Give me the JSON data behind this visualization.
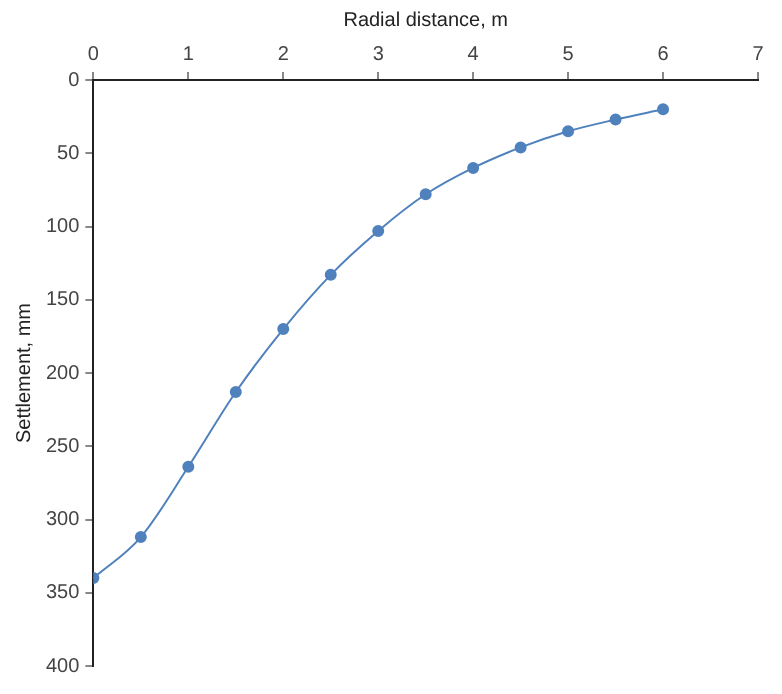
{
  "chart_data": {
    "type": "line",
    "xlabel": "Radial distance, m",
    "ylabel": "Settlement, mm",
    "x": [
      0,
      0.5,
      1,
      1.5,
      2,
      2.5,
      3,
      3.5,
      4,
      4.5,
      5,
      5.5,
      6
    ],
    "series": [
      {
        "color": "#4f81bd",
        "values": [
          340,
          312,
          264,
          213,
          170,
          133,
          103,
          78,
          60,
          46,
          35,
          27,
          20
        ]
      }
    ],
    "xlim": [
      0,
      7
    ],
    "xticks": [
      0,
      1,
      2,
      3,
      4,
      5,
      6,
      7
    ],
    "ylim": [
      400,
      0
    ],
    "yticks": [
      0,
      50,
      100,
      150,
      200,
      250,
      300,
      350,
      400
    ],
    "grid": false,
    "legend": false,
    "marker": "circle",
    "line_style": "solid"
  }
}
